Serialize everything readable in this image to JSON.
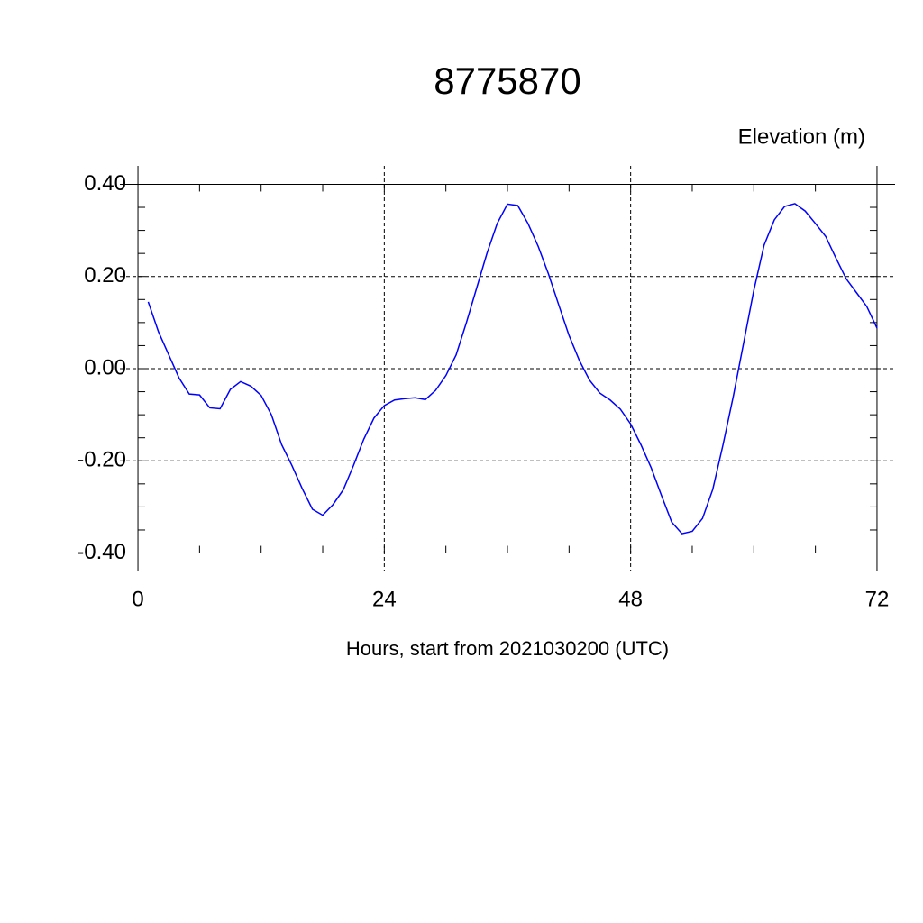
{
  "chart_data": {
    "type": "line",
    "title": "8775870",
    "y_label": "Elevation (m)",
    "x_label": "Hours, start from 2021030200 (UTC)",
    "xlim": [
      -1.76,
      73.76
    ],
    "xticks": [
      0,
      24,
      48,
      72
    ],
    "ylim": [
      -0.44,
      0.44
    ],
    "yticks": [
      {
        "value": -0.4,
        "label": "-0.40"
      },
      {
        "value": -0.2,
        "label": "-0.20"
      },
      {
        "value": 0,
        "label": "0.00"
      },
      {
        "value": 0.2,
        "label": "0.20"
      },
      {
        "value": 0.4,
        "label": "0.40"
      }
    ],
    "grid": true,
    "x": [
      1,
      2,
      3,
      4,
      5,
      6,
      7,
      8,
      9,
      10,
      11,
      12,
      13,
      14,
      15,
      16,
      17,
      18,
      19,
      20,
      21,
      22,
      23,
      24,
      25,
      26,
      27,
      28,
      29,
      30,
      31,
      32,
      33,
      34,
      35,
      36,
      37,
      38,
      39,
      40,
      41,
      42,
      43,
      44,
      45,
      46,
      47,
      48,
      49,
      50,
      51,
      52,
      53,
      54,
      55,
      56,
      57,
      58,
      59,
      60,
      61,
      62,
      63,
      64,
      65,
      66,
      67,
      68,
      69,
      70,
      71,
      72
    ],
    "series": [
      {
        "color": "#0000ff",
        "values": [
          0.145,
          0.08,
          0.03,
          -0.02,
          -0.055,
          -0.057,
          -0.085,
          -0.087,
          -0.045,
          -0.028,
          -0.038,
          -0.058,
          -0.1,
          -0.165,
          -0.21,
          -0.26,
          -0.305,
          -0.318,
          -0.295,
          -0.263,
          -0.21,
          -0.153,
          -0.107,
          -0.08,
          -0.068,
          -0.065,
          -0.063,
          -0.067,
          -0.047,
          -0.015,
          0.03,
          0.1,
          0.175,
          0.25,
          0.315,
          0.357,
          0.354,
          0.315,
          0.265,
          0.205,
          0.138,
          0.072,
          0.018,
          -0.025,
          -0.053,
          -0.068,
          -0.088,
          -0.12,
          -0.165,
          -0.215,
          -0.275,
          -0.333,
          -0.358,
          -0.353,
          -0.325,
          -0.262,
          -0.165,
          -0.06,
          0.055,
          0.17,
          0.268,
          0.323,
          0.352,
          0.358,
          0.342,
          0.315,
          0.287,
          0.24,
          0.195,
          0.165,
          0.135,
          0.088
        ]
      }
    ]
  }
}
